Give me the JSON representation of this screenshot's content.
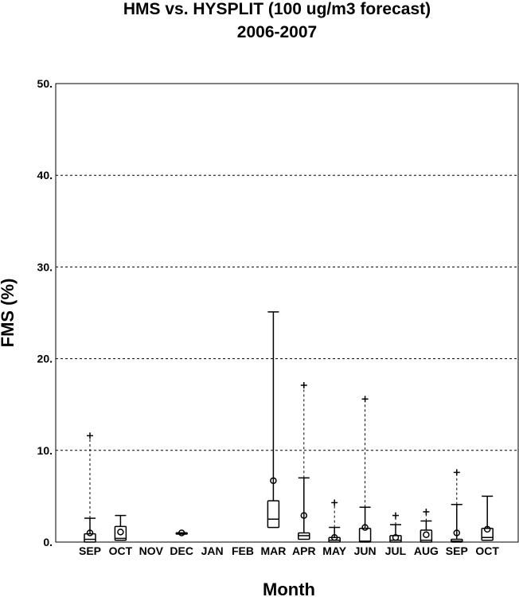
{
  "chart_data": {
    "type": "box",
    "title": "HMS vs. HYSPLIT (100 ug/m3 forecast)",
    "subtitle": "2006-2007",
    "xlabel": "Month",
    "ylabel": "FMS (%)",
    "ylim": [
      0,
      50
    ],
    "yticks": [
      "0.",
      "10.",
      "20.",
      "30.",
      "40.",
      "50."
    ],
    "grid": "horizontal dashed",
    "categories": [
      "SEP",
      "OCT",
      "NOV",
      "DEC",
      "JAN",
      "FEB",
      "MAR",
      "APR",
      "MAY",
      "JUN",
      "JUL",
      "AUG",
      "SEP",
      "OCT"
    ],
    "boxes": [
      {
        "q1": 0.0,
        "median": 0.3,
        "q3": 0.9,
        "whisker_low": 0.0,
        "whisker_high": 2.6,
        "mean": 1.0,
        "outliers": [
          11.6
        ],
        "max_line": "dashed"
      },
      {
        "q1": 0.2,
        "median": 0.4,
        "q3": 1.7,
        "whisker_low": 0.2,
        "whisker_high": 2.9,
        "mean": 1.1,
        "outliers": [],
        "max_line": "solid"
      },
      null,
      {
        "q1": 1.0,
        "median": 1.0,
        "q3": 1.0,
        "whisker_low": 1.0,
        "whisker_high": 1.0,
        "mean": 1.0,
        "outliers": [],
        "max_line": "solid"
      },
      null,
      null,
      {
        "q1": 1.6,
        "median": 2.5,
        "q3": 4.5,
        "whisker_low": 0.1,
        "whisker_high": 25.1,
        "mean": 6.7,
        "outliers": [],
        "max_line": "solid"
      },
      {
        "q1": 0.3,
        "median": 0.7,
        "q3": 1.0,
        "whisker_low": 0.0,
        "whisker_high": 7.0,
        "mean": 2.9,
        "outliers": [
          17.1
        ],
        "max_line": "dashed"
      },
      {
        "q1": 0.0,
        "median": 0.2,
        "q3": 0.5,
        "whisker_low": 0.0,
        "whisker_high": 1.6,
        "mean": 0.5,
        "outliers": [
          4.3
        ],
        "max_line": "dashed"
      },
      {
        "q1": 0.0,
        "median": 0.1,
        "q3": 1.5,
        "whisker_low": 0.0,
        "whisker_high": 3.8,
        "mean": 1.6,
        "outliers": [
          15.6
        ],
        "max_line": "dashed"
      },
      {
        "q1": 0.0,
        "median": 0.2,
        "q3": 0.7,
        "whisker_low": 0.0,
        "whisker_high": 1.9,
        "mean": 0.5,
        "outliers": [
          2.9
        ],
        "max_line": "dashed"
      },
      {
        "q1": 0.0,
        "median": 0.2,
        "q3": 1.3,
        "whisker_low": 0.0,
        "whisker_high": 2.3,
        "mean": 0.8,
        "outliers": [
          3.3
        ],
        "max_line": "dashed"
      },
      {
        "q1": 0.0,
        "median": 0.1,
        "q3": 0.3,
        "whisker_low": 0.0,
        "whisker_high": 4.1,
        "mean": 1.0,
        "outliers": [
          7.6
        ],
        "max_line": "dashed"
      },
      {
        "q1": 0.2,
        "median": 0.5,
        "q3": 1.5,
        "whisker_low": 0.2,
        "whisker_high": 5.0,
        "mean": 1.4,
        "outliers": [],
        "max_line": "solid"
      }
    ]
  }
}
